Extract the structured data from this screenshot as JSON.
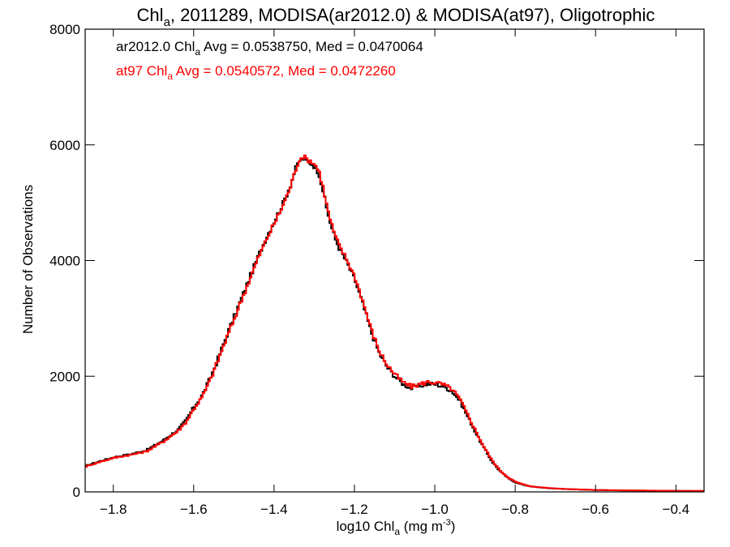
{
  "chart_data": {
    "type": "line",
    "title": {
      "pre": "Chl",
      "sub": "a",
      "post": ", 2011289, MODISA(ar2012.0) & MODISA(at97), Oligotrophic"
    },
    "xlabel": {
      "pre": "log10 Chl",
      "sub": "a",
      "post": " (mg m",
      "sup": "-3",
      "end": ")"
    },
    "ylabel": "Number of Observations",
    "xlim": [
      -1.87,
      -0.33
    ],
    "ylim": [
      0,
      8000
    ],
    "xticks": [
      -1.8,
      -1.6,
      -1.4,
      -1.2,
      -1.0,
      -0.8,
      -0.6,
      -0.4
    ],
    "xtick_labels": [
      "−1.8",
      "−1.6",
      "−1.4",
      "−1.2",
      "−1.0",
      "−0.8",
      "−0.6",
      "−0.4"
    ],
    "yticks": [
      0,
      2000,
      4000,
      6000,
      8000
    ],
    "ytick_labels": [
      "0",
      "2000",
      "4000",
      "6000",
      "8000"
    ],
    "annotations": [
      {
        "pre": "ar2012.0 Chl",
        "sub": "a",
        "post": " Avg = 0.0538750, Med = 0.0470064",
        "color": "#000000"
      },
      {
        "pre": "at97 Chl",
        "sub": "a",
        "post": " Avg = 0.0540572, Med = 0.0472260",
        "color": "#ff0000"
      }
    ],
    "series": [
      {
        "color": "#000000",
        "x": [
          -1.87,
          -1.84,
          -1.8,
          -1.76,
          -1.72,
          -1.68,
          -1.64,
          -1.62,
          -1.6,
          -1.58,
          -1.56,
          -1.54,
          -1.52,
          -1.5,
          -1.48,
          -1.46,
          -1.44,
          -1.42,
          -1.4,
          -1.38,
          -1.36,
          -1.35,
          -1.34,
          -1.33,
          -1.32,
          -1.31,
          -1.3,
          -1.29,
          -1.28,
          -1.27,
          -1.26,
          -1.25,
          -1.24,
          -1.22,
          -1.2,
          -1.18,
          -1.16,
          -1.14,
          -1.12,
          -1.1,
          -1.08,
          -1.06,
          -1.04,
          -1.02,
          -1.0,
          -0.98,
          -0.96,
          -0.94,
          -0.92,
          -0.9,
          -0.88,
          -0.86,
          -0.84,
          -0.82,
          -0.8,
          -0.78,
          -0.76,
          -0.72,
          -0.68,
          -0.64,
          -0.6,
          -0.56,
          -0.52,
          -0.48,
          -0.44,
          -0.4,
          -0.36,
          -0.33
        ],
        "y": [
          450,
          520,
          600,
          650,
          720,
          880,
          1080,
          1250,
          1480,
          1680,
          1980,
          2330,
          2700,
          3050,
          3400,
          3750,
          4100,
          4420,
          4700,
          4980,
          5330,
          5560,
          5720,
          5760,
          5720,
          5680,
          5620,
          5500,
          5200,
          4860,
          4600,
          4380,
          4220,
          3950,
          3650,
          3220,
          2760,
          2390,
          2150,
          1990,
          1860,
          1790,
          1830,
          1870,
          1860,
          1820,
          1750,
          1580,
          1300,
          1020,
          760,
          530,
          360,
          240,
          160,
          120,
          90,
          65,
          50,
          40,
          32,
          28,
          25,
          22,
          20,
          18,
          16,
          15
        ]
      },
      {
        "color": "#ff0000",
        "x": [
          -1.87,
          -1.84,
          -1.8,
          -1.76,
          -1.72,
          -1.68,
          -1.64,
          -1.62,
          -1.6,
          -1.58,
          -1.56,
          -1.54,
          -1.52,
          -1.5,
          -1.48,
          -1.46,
          -1.44,
          -1.42,
          -1.4,
          -1.38,
          -1.36,
          -1.35,
          -1.34,
          -1.33,
          -1.32,
          -1.31,
          -1.3,
          -1.29,
          -1.28,
          -1.27,
          -1.26,
          -1.25,
          -1.24,
          -1.22,
          -1.2,
          -1.18,
          -1.16,
          -1.14,
          -1.12,
          -1.1,
          -1.08,
          -1.06,
          -1.04,
          -1.02,
          -1.0,
          -0.98,
          -0.96,
          -0.94,
          -0.92,
          -0.9,
          -0.88,
          -0.86,
          -0.84,
          -0.82,
          -0.8,
          -0.78,
          -0.76,
          -0.72,
          -0.68,
          -0.64,
          -0.6,
          -0.56,
          -0.52,
          -0.48,
          -0.44,
          -0.4,
          -0.36,
          -0.33
        ],
        "y": [
          440,
          510,
          590,
          640,
          700,
          860,
          1060,
          1220,
          1450,
          1650,
          1950,
          2300,
          2660,
          3010,
          3370,
          3720,
          4070,
          4380,
          4660,
          4950,
          5300,
          5540,
          5740,
          5800,
          5750,
          5720,
          5660,
          5540,
          5260,
          4920,
          4650,
          4420,
          4260,
          4000,
          3700,
          3270,
          2800,
          2430,
          2190,
          2020,
          1890,
          1820,
          1860,
          1900,
          1890,
          1850,
          1780,
          1610,
          1330,
          1050,
          780,
          550,
          370,
          250,
          170,
          125,
          92,
          67,
          52,
          41,
          33,
          29,
          26,
          23,
          21,
          19,
          17,
          16
        ]
      }
    ]
  }
}
